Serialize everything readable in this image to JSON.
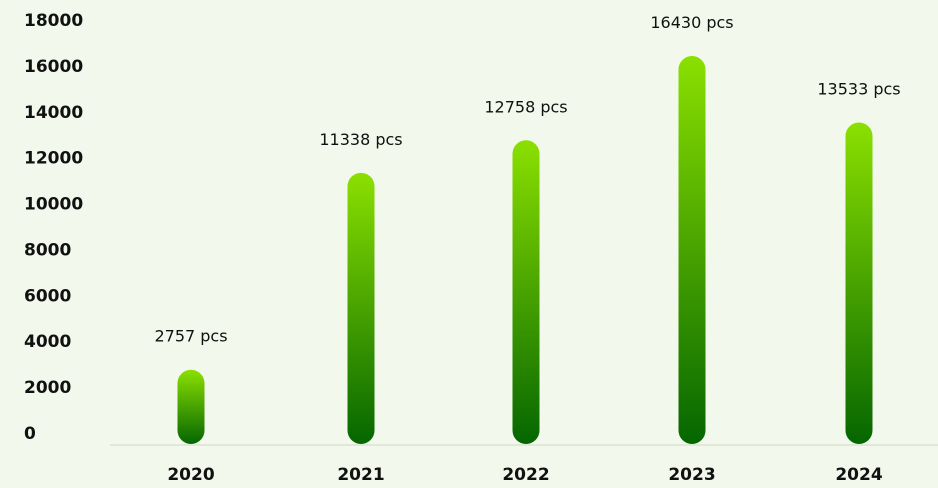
{
  "chart_data": {
    "type": "bar",
    "categories": [
      "2020",
      "2021",
      "2022",
      "2023",
      "2024"
    ],
    "values": [
      2757,
      11338,
      12758,
      16430,
      13533
    ],
    "data_labels": [
      "2757 pcs",
      "11338 pcs",
      "12758 pcs",
      "16430 pcs",
      "13533 pcs"
    ],
    "yticks": [
      "0",
      "2000",
      "4000",
      "6000",
      "8000",
      "10000",
      "12000",
      "14000",
      "16000",
      "18000"
    ],
    "ylim": [
      0,
      18000
    ],
    "title": "",
    "xlabel": "",
    "ylabel": "",
    "grid": false,
    "legend": "none",
    "colors": {
      "bar_top": "#8be000",
      "bar_bottom": "#056600",
      "axis": "#cfd6c8",
      "background": "#f3f8ec",
      "text": "#111111"
    }
  }
}
